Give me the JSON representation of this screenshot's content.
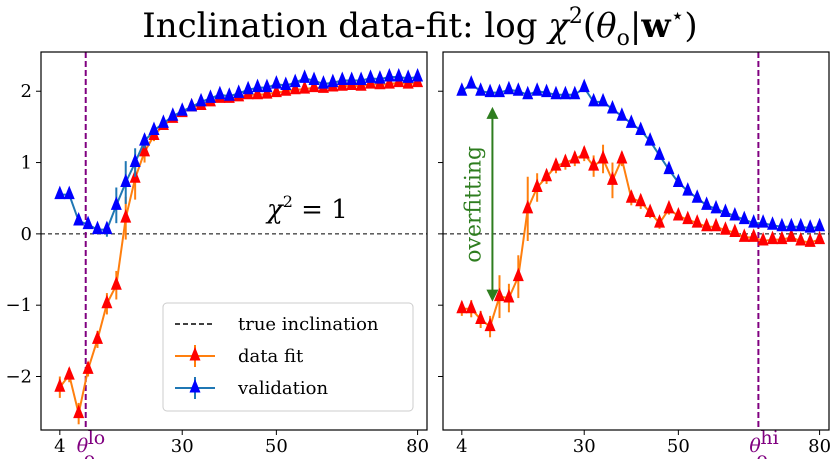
{
  "chart_data": [
    {
      "type": "line",
      "panel": "left",
      "title": "Inclination data-fit: log χ²(θo|w*)",
      "ylim": [
        -2.75,
        2.55
      ],
      "yticks": [
        -2,
        -1,
        0,
        1,
        2
      ],
      "ytick_labels": [
        "−2",
        "−1",
        "0",
        "1",
        "2"
      ],
      "xlim": [
        0,
        82
      ],
      "xticks": [
        4,
        30,
        50,
        80
      ],
      "xtick_labels": [
        "4",
        "30",
        "50",
        "80"
      ],
      "reference_line": {
        "y": 0,
        "style": "dashed",
        "label": "true inclination"
      },
      "vertical_marker": {
        "x": 9.5,
        "label": "θ",
        "sup": "lo",
        "sub": "o",
        "color": "#800080"
      },
      "annotation": "χ² = 1",
      "legend": {
        "placement": "lower-right",
        "entries": [
          {
            "label": "true inclination",
            "style": "dashed",
            "color": "#000000"
          },
          {
            "label": "data fit",
            "color": "#ff7f0e",
            "marker_color": "#ff0000"
          },
          {
            "label": "validation",
            "color": "#1f77b4",
            "marker_color": "#0000ff"
          }
        ]
      },
      "series": [
        {
          "name": "data fit",
          "line_color": "#ff7f0e",
          "marker_color": "#ff0000",
          "marker": "triangle-up",
          "x": [
            4,
            6,
            8,
            10,
            12,
            14,
            16,
            18,
            20,
            22,
            24,
            26,
            28,
            30,
            32,
            34,
            36,
            38,
            40,
            42,
            44,
            46,
            48,
            50,
            52,
            54,
            56,
            58,
            60,
            62,
            64,
            66,
            68,
            70,
            72,
            74,
            76,
            78,
            80
          ],
          "y": [
            -2.15,
            -1.98,
            -2.52,
            -1.9,
            -1.48,
            -0.98,
            -0.72,
            0.22,
            0.78,
            1.15,
            1.38,
            1.52,
            1.62,
            1.7,
            1.78,
            1.8,
            1.85,
            1.9,
            1.9,
            1.92,
            1.95,
            1.95,
            1.96,
            1.98,
            2.0,
            2.02,
            2.03,
            2.05,
            2.04,
            2.06,
            2.07,
            2.08,
            2.07,
            2.1,
            2.09,
            2.1,
            2.12,
            2.1,
            2.12
          ],
          "yerr": [
            0.15,
            0.1,
            0.15,
            0.1,
            0.12,
            0.15,
            0.2,
            0.3,
            0.3,
            0.15,
            0.08,
            0.05,
            0.05,
            0.05,
            0.05,
            0.05,
            0.05,
            0.05,
            0.05,
            0.05,
            0.05,
            0.05,
            0.05,
            0.05,
            0.05,
            0.05,
            0.05,
            0.05,
            0.05,
            0.05,
            0.05,
            0.05,
            0.05,
            0.05,
            0.05,
            0.05,
            0.05,
            0.05,
            0.05
          ]
        },
        {
          "name": "validation",
          "line_color": "#1f77b4",
          "marker_color": "#0000ff",
          "marker": "triangle-up",
          "x": [
            4,
            6,
            8,
            10,
            12,
            14,
            16,
            18,
            20,
            22,
            24,
            26,
            28,
            30,
            32,
            34,
            36,
            38,
            40,
            42,
            44,
            46,
            48,
            50,
            52,
            54,
            56,
            58,
            60,
            62,
            64,
            66,
            68,
            70,
            72,
            74,
            76,
            78,
            80
          ],
          "y": [
            0.55,
            0.55,
            0.18,
            0.13,
            0.06,
            0.06,
            0.4,
            0.72,
            1.0,
            1.3,
            1.45,
            1.55,
            1.65,
            1.72,
            1.78,
            1.85,
            1.9,
            1.95,
            1.93,
            1.97,
            2.02,
            2.05,
            2.05,
            2.1,
            2.08,
            2.12,
            2.18,
            2.15,
            2.1,
            2.12,
            2.15,
            2.15,
            2.15,
            2.18,
            2.17,
            2.2,
            2.2,
            2.18,
            2.2
          ],
          "yerr": [
            0.02,
            0.02,
            0.02,
            0.02,
            0.03,
            0.1,
            0.25,
            0.3,
            0.2,
            0.1,
            0.05,
            0.05,
            0.04,
            0.04,
            0.04,
            0.04,
            0.04,
            0.04,
            0.04,
            0.04,
            0.04,
            0.04,
            0.04,
            0.04,
            0.04,
            0.04,
            0.04,
            0.04,
            0.04,
            0.04,
            0.04,
            0.04,
            0.04,
            0.04,
            0.04,
            0.04,
            0.04,
            0.04,
            0.04
          ]
        }
      ]
    },
    {
      "type": "line",
      "panel": "right",
      "ylim": [
        -2.75,
        2.55
      ],
      "xlim": [
        0,
        82
      ],
      "xticks": [
        4,
        30,
        50,
        80
      ],
      "xtick_labels": [
        "4",
        "30",
        "50",
        "80"
      ],
      "reference_line": {
        "y": 0,
        "style": "dashed"
      },
      "vertical_marker": {
        "x": 67,
        "label": "θ",
        "sup": "hi",
        "sub": "o",
        "color": "#800080"
      },
      "annotation": {
        "text": "overfitting",
        "x": 10.5,
        "y_from": -0.95,
        "y_to": 1.78,
        "color": "#2e7d1f"
      },
      "series": [
        {
          "name": "data fit",
          "line_color": "#ff7f0e",
          "marker_color": "#ff0000",
          "marker": "triangle-up",
          "x": [
            4,
            6,
            8,
            10,
            12,
            14,
            16,
            18,
            20,
            22,
            24,
            26,
            28,
            30,
            32,
            34,
            36,
            38,
            40,
            42,
            44,
            46,
            48,
            50,
            52,
            54,
            56,
            58,
            60,
            62,
            64,
            66,
            68,
            70,
            72,
            74,
            76,
            78,
            80
          ],
          "y": [
            -1.05,
            -1.05,
            -1.2,
            -1.3,
            -0.88,
            -0.9,
            -0.6,
            0.35,
            0.65,
            0.8,
            0.95,
            1.0,
            1.05,
            1.12,
            0.95,
            1.05,
            0.75,
            1.05,
            0.5,
            0.45,
            0.3,
            0.15,
            0.35,
            0.25,
            0.2,
            0.15,
            0.1,
            0.1,
            0.05,
            0.02,
            -0.05,
            -0.05,
            -0.1,
            -0.08,
            -0.08,
            -0.05,
            -0.1,
            -0.12,
            -0.08
          ],
          "yerr": [
            0.1,
            0.12,
            0.12,
            0.15,
            0.3,
            0.2,
            0.3,
            0.45,
            0.2,
            0.1,
            0.1,
            0.1,
            0.1,
            0.1,
            0.15,
            0.2,
            0.25,
            0.1,
            0.1,
            0.1,
            0.08,
            0.08,
            0.08,
            0.05,
            0.05,
            0.05,
            0.05,
            0.05,
            0.05,
            0.05,
            0.05,
            0.05,
            0.05,
            0.05,
            0.05,
            0.05,
            0.05,
            0.05,
            0.05
          ]
        },
        {
          "name": "validation",
          "line_color": "#1f77b4",
          "marker_color": "#0000ff",
          "marker": "triangle-up",
          "x": [
            4,
            6,
            8,
            10,
            12,
            14,
            16,
            18,
            20,
            22,
            24,
            26,
            28,
            30,
            32,
            34,
            36,
            38,
            40,
            42,
            44,
            46,
            48,
            50,
            52,
            54,
            56,
            58,
            60,
            62,
            64,
            66,
            68,
            70,
            72,
            74,
            76,
            78,
            80
          ],
          "y": [
            2.0,
            2.1,
            2.0,
            1.98,
            1.98,
            2.02,
            2.0,
            1.95,
            2.0,
            1.98,
            1.95,
            1.95,
            1.95,
            2.05,
            1.85,
            1.85,
            1.75,
            1.65,
            1.55,
            1.45,
            1.3,
            1.1,
            0.9,
            0.72,
            0.6,
            0.5,
            0.4,
            0.35,
            0.3,
            0.25,
            0.2,
            0.15,
            0.15,
            0.12,
            0.1,
            0.1,
            0.1,
            0.08,
            0.1
          ],
          "yerr": [
            0.03,
            0.03,
            0.03,
            0.03,
            0.03,
            0.03,
            0.03,
            0.03,
            0.03,
            0.03,
            0.03,
            0.03,
            0.03,
            0.03,
            0.03,
            0.03,
            0.03,
            0.03,
            0.03,
            0.03,
            0.03,
            0.03,
            0.03,
            0.03,
            0.03,
            0.03,
            0.03,
            0.03,
            0.03,
            0.03,
            0.03,
            0.03,
            0.03,
            0.03,
            0.03,
            0.03,
            0.03,
            0.03,
            0.03
          ]
        }
      ]
    }
  ]
}
